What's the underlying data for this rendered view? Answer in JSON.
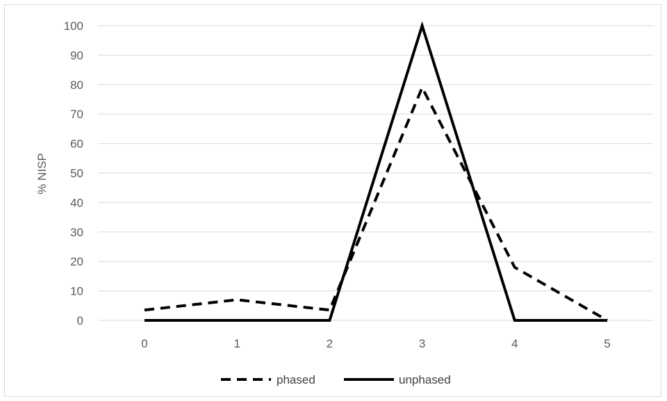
{
  "chart_data": {
    "type": "line",
    "x": [
      0,
      1,
      2,
      3,
      4,
      5
    ],
    "series": [
      {
        "name": "phased",
        "values": [
          3.5,
          7,
          3.5,
          79,
          18,
          0
        ],
        "line_style": "dashed",
        "color": "#000000"
      },
      {
        "name": "unphased",
        "values": [
          0,
          0,
          0,
          100,
          0,
          0
        ],
        "line_style": "solid",
        "color": "#000000"
      }
    ],
    "title": "",
    "xlabel": "",
    "ylabel": "% NISP",
    "xlim": [
      0,
      5
    ],
    "ylim": [
      0,
      100
    ],
    "y_ticks": [
      0,
      10,
      20,
      30,
      40,
      50,
      60,
      70,
      80,
      90,
      100
    ],
    "x_ticks": [
      0,
      1,
      2,
      3,
      4,
      5
    ],
    "grid": "horizontal",
    "grid_color": "#d9d9d9",
    "legend_position": "bottom"
  }
}
